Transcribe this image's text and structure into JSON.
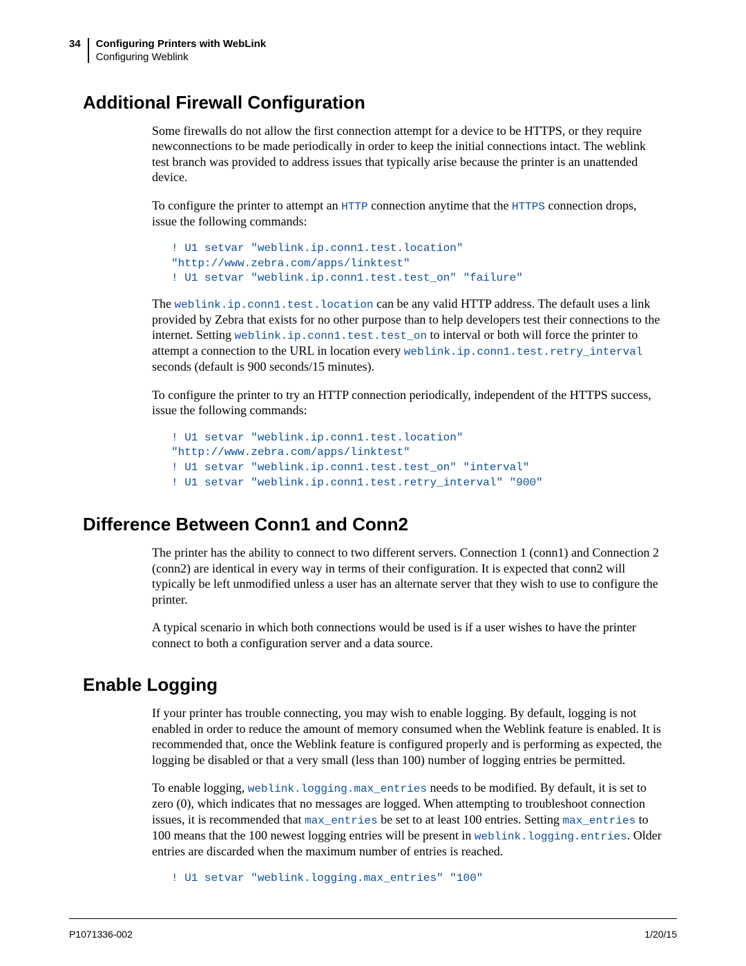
{
  "header": {
    "page_number": "34",
    "title_bold": "Configuring Printers with WebLink",
    "subtitle": "Configuring Weblink"
  },
  "sections": {
    "firewall": {
      "heading": "Additional Firewall Configuration",
      "p1": "Some firewalls do not allow the first connection attempt for a device to be HTTPS, or they require newconnections to be made periodically in order to keep the initial connections intact. The weblink test branch was provided to address issues that typically arise because the printer is an unattended device.",
      "p2_a": "To configure the printer to attempt an ",
      "p2_code1": "HTTP",
      "p2_b": " connection anytime that the ",
      "p2_code2": "HTTPS",
      "p2_c": " connection drops, issue the following commands:",
      "code1": "! U1 setvar \"weblink.ip.conn1.test.location\" \"http://www.zebra.com/apps/linktest\"\n! U1 setvar \"weblink.ip.conn1.test.test_on\" \"failure\"",
      "p3_a": "The ",
      "p3_code1": "weblink.ip.conn1.test.location",
      "p3_b": " can be any valid HTTP address. The default uses a link provided by Zebra that exists for no other purpose than to help developers test their connections to the internet. Setting ",
      "p3_code2": "weblink.ip.conn1.test.test_on",
      "p3_c": " to interval or both will force the printer to attempt a connection to the URL in location every ",
      "p3_code3": "weblink.ip.conn1.test.retry_interval",
      "p3_d": " seconds (default is 900 seconds/15 minutes).",
      "p4": "To configure the printer to try an HTTP connection periodically, independent of the HTTPS success, issue the following commands:",
      "code2": "! U1 setvar \"weblink.ip.conn1.test.location\" \"http://www.zebra.com/apps/linktest\"\n! U1 setvar \"weblink.ip.conn1.test.test_on\" \"interval\"\n! U1 setvar \"weblink.ip.conn1.test.retry_interval\" \"900\""
    },
    "conn": {
      "heading": "Difference Between Conn1 and Conn2",
      "p1": "The printer has the ability to connect to two different servers. Connection 1 (conn1) and Connection 2 (conn2) are identical in every way in terms of their configuration. It is expected that conn2 will typically be left unmodified unless a user has an alternate server that they wish to use to configure the printer.",
      "p2": "A typical scenario in which both connections would be used is if a user wishes to have the printer connect to both a configuration server and a data source."
    },
    "logging": {
      "heading": "Enable Logging",
      "p1": "If your printer has trouble connecting, you may wish to enable logging. By default, logging is not enabled in order to reduce the amount of memory consumed when the Weblink feature is enabled. It is recommended that, once the Weblink feature is configured properly and is performing as expected, the logging be disabled or that a very small (less than 100) number of logging entries be permitted.",
      "p2_a": "To enable logging, ",
      "p2_code1": "weblink.logging.max_entries",
      "p2_b": " needs to be modified. By default, it is set to zero (0), which indicates that no messages are logged. When attempting to troubleshoot connection issues, it is recommended that ",
      "p2_code2": "max_entries",
      "p2_c": " be set to at least 100 entries. Setting ",
      "p2_code3": "max_entries",
      "p2_d": " to 100 means that the 100 newest logging entries will be present in ",
      "p2_code4": "weblink.logging.entries",
      "p2_e": ". Older entries are discarded when the maximum number of entries is reached.",
      "code1": "! U1 setvar \"weblink.logging.max_entries\" \"100\""
    }
  },
  "footer": {
    "left": "P1071336-002",
    "right": "1/20/15"
  }
}
